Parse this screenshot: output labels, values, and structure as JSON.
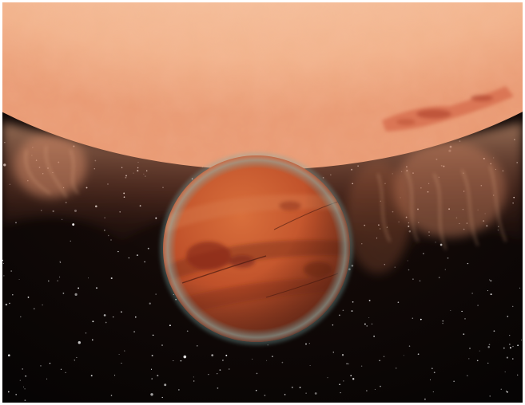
{
  "image": {
    "subject": "artist-impression-exoplanet-transiting-star",
    "palette": {
      "space": "#060404",
      "star_glow": "#f7c9a7",
      "star_surface": "#f6bf9b",
      "star_spot": "#c5553a",
      "planet_base": "#c4562c",
      "planet_band_dark": "#7a2a1a",
      "planet_band_light": "#d8794c",
      "planet_rim": "#6fa3a3",
      "stars": "#ffffff"
    },
    "icons": {
      "starfield": "starfield-icon",
      "host_star": "sun-icon",
      "planet": "planet-icon"
    }
  }
}
